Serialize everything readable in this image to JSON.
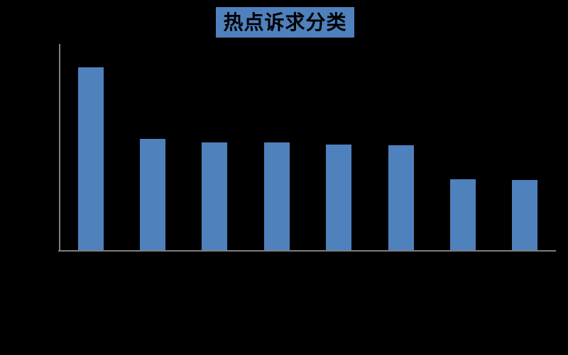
{
  "window": {
    "background_color": "#000000"
  },
  "chart": {
    "title": "热点诉求分类",
    "title_bg_color": "#4F81BD",
    "title_text_color": "#000000",
    "bar_color": "#4F81BD",
    "axis_color": "#7F7F7F"
  },
  "chart_data": {
    "type": "bar",
    "title": "热点诉求分类",
    "categories": [
      "",
      "",
      "",
      "",
      "",
      "",
      "",
      ""
    ],
    "values": [
      88.5,
      53.8,
      52.4,
      52.1,
      51.2,
      50.7,
      34.3,
      34.0
    ],
    "xlabel": "",
    "ylabel": "",
    "ylim": [
      0,
      100
    ],
    "grid": false,
    "legend": false
  }
}
